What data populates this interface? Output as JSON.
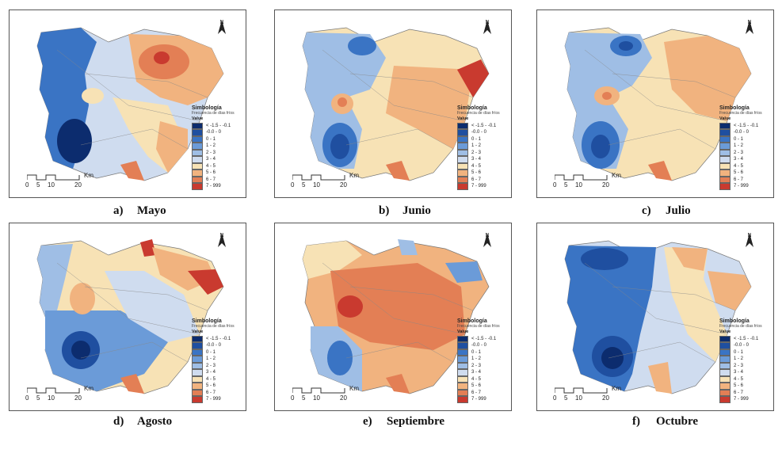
{
  "panels": [
    {
      "letter": "a)",
      "month": "Mayo",
      "theme": "mayo"
    },
    {
      "letter": "b)",
      "month": "Junio",
      "theme": "junio"
    },
    {
      "letter": "c)",
      "month": "Julio",
      "theme": "julio"
    },
    {
      "letter": "d)",
      "month": "Agosto",
      "theme": "agosto"
    },
    {
      "letter": "e)",
      "month": "Septiembre",
      "theme": "septiembre"
    },
    {
      "letter": "f)",
      "month": "Octubre",
      "theme": "octubre"
    }
  ],
  "legend": {
    "title": "Simbología",
    "subtitle": "Frecuencia de días fríos",
    "value_header": "Value",
    "classes": [
      {
        "label": "< -1.5 - -0.1",
        "color": "#0c2c6e"
      },
      {
        "label": "-0.0 - 0",
        "color": "#1f4fa0"
      },
      {
        "label": "0 - 1",
        "color": "#3a74c4"
      },
      {
        "label": "1 - 2",
        "color": "#6b9bd8"
      },
      {
        "label": "2 - 3",
        "color": "#9fbee5"
      },
      {
        "label": "3 - 4",
        "color": "#cfdcef"
      },
      {
        "label": "4 - 5",
        "color": "#f7e2b5"
      },
      {
        "label": "5 - 6",
        "color": "#f1b37f"
      },
      {
        "label": "6 - 7",
        "color": "#e37f55"
      },
      {
        "label": "7 - 999",
        "color": "#c93a2f"
      }
    ]
  },
  "scale": {
    "unit": "Km",
    "ticks": [
      "0",
      "5",
      "10",
      "20"
    ]
  },
  "north": "N"
}
